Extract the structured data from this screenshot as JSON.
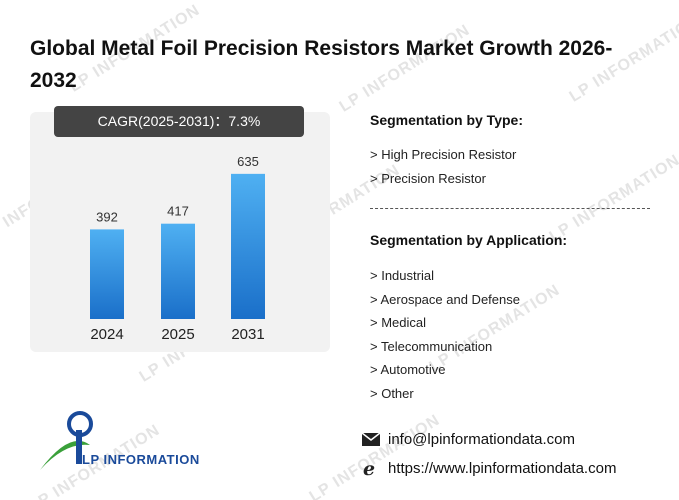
{
  "title": "Global Metal Foil Precision Resistors Market Growth 2026-2032",
  "cagr_label": "CAGR(2025-2031)：7.3%",
  "watermark_text": "LP INFORMATION",
  "colors": {
    "bar_top": "#4fb0f2",
    "bar_bottom": "#1a6fc9",
    "panel": "#f2f2f2",
    "cagr_bg": "#444444",
    "logo_blue": "#1a4a9a",
    "logo_green": "#3aa03a"
  },
  "chart_data": {
    "type": "bar",
    "categories": [
      "2024",
      "2025",
      "2031"
    ],
    "values": [
      392,
      417,
      635
    ],
    "ylim": [
      0,
      700
    ],
    "grid": false,
    "legend": "none"
  },
  "segmentation": {
    "type_title": "Segmentation by Type:",
    "types": [
      "> High Precision Resistor",
      "> Precision Resistor"
    ],
    "application_title": "Segmentation by Application:",
    "applications": [
      "> Industrial",
      "> Aerospace and Defense",
      "> Medical",
      "> Telecommunication",
      "> Automotive",
      "> Other"
    ]
  },
  "logo": {
    "text": "LP INFORMATION",
    "icon": "lp-information-logo"
  },
  "contact": {
    "email": "info@lpinformationdata.com",
    "email_icon": "mail-icon",
    "website": "https://www.lpinformationdata.com",
    "website_icon": "browser-e-icon"
  }
}
